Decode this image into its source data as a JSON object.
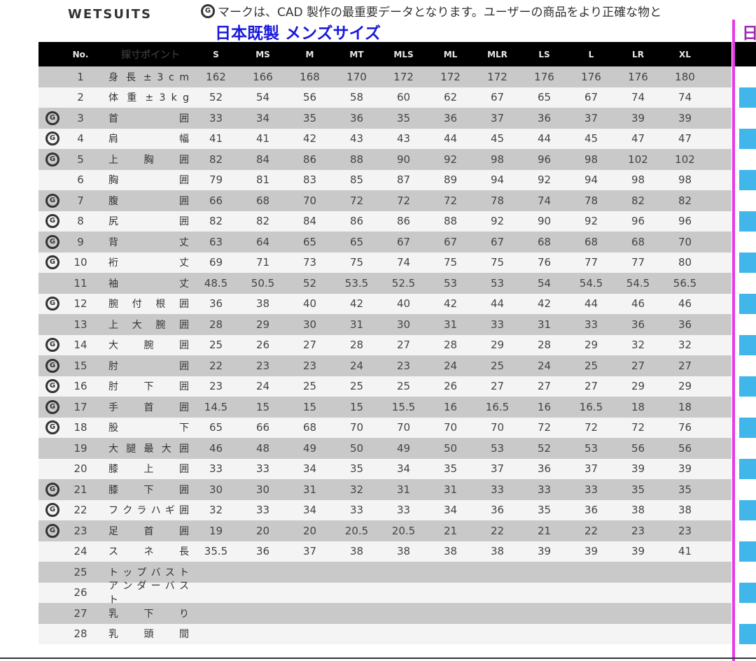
{
  "brand": "WETSUITS",
  "note": "マークは、CAD 製作の最重要データとなります。ユーザーの商品をより正確な物と",
  "mark_icon": "cad-g-mark-icon",
  "subtitle": "日本既製 メンズサイズ",
  "next_title": "日",
  "colors": {
    "header_bg": "#000000",
    "row_gray": "#c9c9c9",
    "row_light": "#f4f4f4",
    "subtitle": "#1a1adc",
    "divider": "#e33be6",
    "stripe": "#41b6ea"
  },
  "table": {
    "headers": {
      "no": "No.",
      "point": "採寸ポイント",
      "sizes": [
        "S",
        "MS",
        "M",
        "MT",
        "MLS",
        "ML",
        "MLR",
        "LS",
        "L",
        "LR",
        "XL"
      ]
    },
    "rows": [
      {
        "no": "1",
        "label": "身 長 ± 3 c m",
        "cad": false,
        "values": [
          "162",
          "166",
          "168",
          "170",
          "172",
          "172",
          "172",
          "176",
          "176",
          "176",
          "180"
        ]
      },
      {
        "no": "2",
        "label": "体 重 ± 3 k g",
        "cad": false,
        "values": [
          "52",
          "54",
          "56",
          "58",
          "60",
          "62",
          "67",
          "65",
          "67",
          "74",
          "74"
        ]
      },
      {
        "no": "3",
        "label": "首 囲",
        "cad": true,
        "values": [
          "33",
          "34",
          "35",
          "36",
          "35",
          "36",
          "37",
          "36",
          "37",
          "39",
          "39"
        ]
      },
      {
        "no": "4",
        "label": "肩 幅",
        "cad": true,
        "values": [
          "41",
          "41",
          "42",
          "43",
          "43",
          "44",
          "45",
          "44",
          "45",
          "47",
          "47"
        ]
      },
      {
        "no": "5",
        "label": "上 胸 囲",
        "cad": true,
        "values": [
          "82",
          "84",
          "86",
          "88",
          "90",
          "92",
          "98",
          "96",
          "98",
          "102",
          "102"
        ]
      },
      {
        "no": "6",
        "label": "胸 囲",
        "cad": false,
        "values": [
          "79",
          "81",
          "83",
          "85",
          "87",
          "89",
          "94",
          "92",
          "94",
          "98",
          "98"
        ]
      },
      {
        "no": "7",
        "label": "腹 囲",
        "cad": true,
        "values": [
          "66",
          "68",
          "70",
          "72",
          "72",
          "72",
          "78",
          "74",
          "78",
          "82",
          "82"
        ]
      },
      {
        "no": "8",
        "label": "尻 囲",
        "cad": true,
        "values": [
          "82",
          "82",
          "84",
          "86",
          "86",
          "88",
          "92",
          "90",
          "92",
          "96",
          "96"
        ]
      },
      {
        "no": "9",
        "label": "背 丈",
        "cad": true,
        "values": [
          "63",
          "64",
          "65",
          "65",
          "67",
          "67",
          "67",
          "68",
          "68",
          "68",
          "70"
        ]
      },
      {
        "no": "10",
        "label": "裄 丈",
        "cad": true,
        "values": [
          "69",
          "71",
          "73",
          "75",
          "74",
          "75",
          "75",
          "76",
          "77",
          "77",
          "80"
        ]
      },
      {
        "no": "11",
        "label": "袖 丈",
        "cad": false,
        "values": [
          "48.5",
          "50.5",
          "52",
          "53.5",
          "52.5",
          "53",
          "53",
          "54",
          "54.5",
          "54.5",
          "56.5"
        ]
      },
      {
        "no": "12",
        "label": "腕 付 根 囲",
        "cad": true,
        "values": [
          "36",
          "38",
          "40",
          "42",
          "40",
          "42",
          "44",
          "42",
          "44",
          "46",
          "46"
        ]
      },
      {
        "no": "13",
        "label": "上 大 腕 囲",
        "cad": false,
        "values": [
          "28",
          "29",
          "30",
          "31",
          "30",
          "31",
          "33",
          "31",
          "33",
          "36",
          "36"
        ]
      },
      {
        "no": "14",
        "label": "大 腕 囲",
        "cad": true,
        "values": [
          "25",
          "26",
          "27",
          "28",
          "27",
          "28",
          "29",
          "28",
          "29",
          "32",
          "32"
        ]
      },
      {
        "no": "15",
        "label": "肘 囲",
        "cad": true,
        "values": [
          "22",
          "23",
          "23",
          "24",
          "23",
          "24",
          "25",
          "24",
          "25",
          "27",
          "27"
        ]
      },
      {
        "no": "16",
        "label": "肘 下 囲",
        "cad": true,
        "values": [
          "23",
          "24",
          "25",
          "25",
          "25",
          "26",
          "27",
          "27",
          "27",
          "29",
          "29"
        ]
      },
      {
        "no": "17",
        "label": "手 首 囲",
        "cad": true,
        "values": [
          "14.5",
          "15",
          "15",
          "15",
          "15.5",
          "16",
          "16.5",
          "16",
          "16.5",
          "18",
          "18"
        ]
      },
      {
        "no": "18",
        "label": "股 下",
        "cad": true,
        "values": [
          "65",
          "66",
          "68",
          "70",
          "70",
          "70",
          "70",
          "72",
          "72",
          "72",
          "76"
        ]
      },
      {
        "no": "19",
        "label": "大 腿 最 大 囲",
        "cad": false,
        "values": [
          "46",
          "48",
          "49",
          "50",
          "49",
          "50",
          "53",
          "52",
          "53",
          "56",
          "56"
        ]
      },
      {
        "no": "20",
        "label": "膝 上 囲",
        "cad": false,
        "values": [
          "33",
          "33",
          "34",
          "35",
          "34",
          "35",
          "37",
          "36",
          "37",
          "39",
          "39"
        ]
      },
      {
        "no": "21",
        "label": "膝 下 囲",
        "cad": true,
        "values": [
          "30",
          "30",
          "31",
          "32",
          "31",
          "31",
          "33",
          "33",
          "33",
          "35",
          "35"
        ]
      },
      {
        "no": "22",
        "label": "フ ク ラ ハ ギ 囲",
        "cad": true,
        "values": [
          "32",
          "33",
          "34",
          "33",
          "33",
          "34",
          "36",
          "35",
          "36",
          "38",
          "38"
        ]
      },
      {
        "no": "23",
        "label": "足 首 囲",
        "cad": true,
        "values": [
          "19",
          "20",
          "20",
          "20.5",
          "20.5",
          "21",
          "22",
          "21",
          "22",
          "23",
          "23"
        ]
      },
      {
        "no": "24",
        "label": "ス ネ 長",
        "cad": false,
        "values": [
          "35.5",
          "36",
          "37",
          "38",
          "38",
          "38",
          "38",
          "39",
          "39",
          "39",
          "41"
        ]
      },
      {
        "no": "25",
        "label": "ト ッ プ バ ス ト",
        "cad": false,
        "values": [
          "",
          "",
          "",
          "",
          "",
          "",
          "",
          "",
          "",
          "",
          ""
        ]
      },
      {
        "no": "26",
        "label": "ア ン ダ ー バ ス ト",
        "cad": false,
        "values": [
          "",
          "",
          "",
          "",
          "",
          "",
          "",
          "",
          "",
          "",
          ""
        ]
      },
      {
        "no": "27",
        "label": "乳 下 り",
        "cad": false,
        "values": [
          "",
          "",
          "",
          "",
          "",
          "",
          "",
          "",
          "",
          "",
          ""
        ]
      },
      {
        "no": "28",
        "label": "乳 頭 間",
        "cad": false,
        "values": [
          "",
          "",
          "",
          "",
          "",
          "",
          "",
          "",
          "",
          "",
          ""
        ]
      }
    ]
  }
}
